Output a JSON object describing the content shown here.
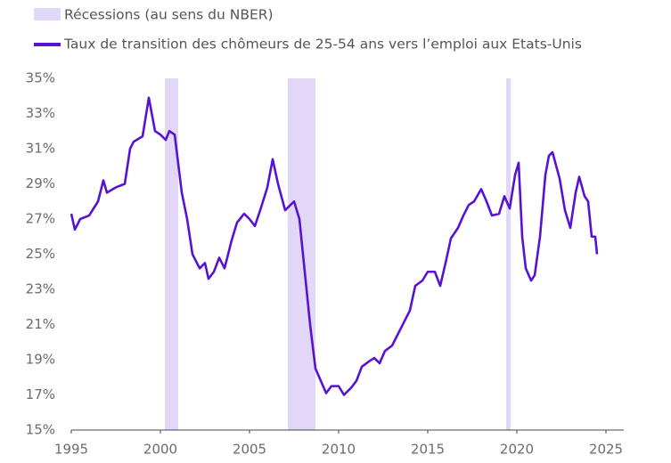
{
  "chart_data": {
    "type": "line",
    "recessions": {
      "name": "Récessions (au sens du NBER)",
      "color": "#e2d7f7",
      "spans": [
        [
          2000.25,
          2001.0
        ],
        [
          2007.15,
          2008.7
        ],
        [
          2019.4,
          2019.65
        ]
      ]
    },
    "series": [
      {
        "name": "Taux de transition des chômeurs de 25-54 ans vers l’emploi aux Etats-Unis",
        "color": "#5713d3",
        "x": [
          1995.0,
          1995.2,
          1995.5,
          1996.0,
          1996.5,
          1996.8,
          1997.0,
          1997.5,
          1998.0,
          1998.3,
          1998.5,
          1999.0,
          1999.35,
          1999.7,
          2000.0,
          2000.3,
          2000.5,
          2000.8,
          2001.2,
          2001.5,
          2001.8,
          2002.2,
          2002.5,
          2002.7,
          2003.0,
          2003.3,
          2003.6,
          2004.0,
          2004.3,
          2004.7,
          2005.0,
          2005.3,
          2005.6,
          2006.0,
          2006.3,
          2006.6,
          2007.0,
          2007.3,
          2007.5,
          2007.8,
          2008.1,
          2008.4,
          2008.7,
          2009.0,
          2009.3,
          2009.6,
          2010.0,
          2010.3,
          2010.7,
          2011.0,
          2011.3,
          2011.7,
          2012.0,
          2012.3,
          2012.6,
          2013.0,
          2013.5,
          2014.0,
          2014.3,
          2014.7,
          2015.0,
          2015.4,
          2015.7,
          2016.0,
          2016.3,
          2016.7,
          2017.0,
          2017.3,
          2017.6,
          2018.0,
          2018.3,
          2018.6,
          2019.0,
          2019.3,
          2019.6,
          2019.9,
          2020.1,
          2020.3,
          2020.5,
          2020.8,
          2021.0,
          2021.3,
          2021.6,
          2021.8,
          2022.0,
          2022.4,
          2022.7,
          2023.0,
          2023.3,
          2023.5,
          2023.8,
          2024.0,
          2024.2,
          2024.4,
          2024.5
        ],
        "values": [
          27.3,
          26.4,
          27.0,
          27.2,
          28.0,
          29.2,
          28.5,
          28.8,
          29.0,
          31.0,
          31.4,
          31.7,
          33.9,
          32.0,
          31.8,
          31.5,
          32.0,
          31.8,
          28.5,
          27.0,
          25.0,
          24.2,
          24.5,
          23.6,
          24.0,
          24.8,
          24.2,
          25.8,
          26.8,
          27.3,
          27.0,
          26.6,
          27.5,
          28.8,
          30.4,
          29.0,
          27.5,
          27.8,
          28.0,
          27.0,
          24.0,
          21.0,
          18.5,
          17.8,
          17.1,
          17.5,
          17.5,
          17.0,
          17.4,
          17.8,
          18.6,
          18.9,
          19.1,
          18.8,
          19.5,
          19.8,
          20.8,
          21.8,
          23.2,
          23.5,
          24.0,
          24.0,
          23.2,
          24.5,
          25.9,
          26.5,
          27.2,
          27.8,
          28.0,
          28.7,
          28.0,
          27.2,
          27.3,
          28.3,
          27.6,
          29.5,
          30.2,
          26.0,
          24.2,
          23.5,
          23.8,
          26.0,
          29.5,
          30.6,
          30.8,
          29.3,
          27.5,
          26.5,
          28.5,
          29.4,
          28.3,
          28.0,
          26.0,
          26.0,
          25.0
        ]
      }
    ],
    "xlim": [
      1995,
      2025
    ],
    "xticks": [
      1995,
      2000,
      2005,
      2010,
      2015,
      2020,
      2025
    ],
    "ylim": [
      15,
      35
    ],
    "yticks": [
      {
        "value": 15,
        "label": "15%"
      },
      {
        "value": 17,
        "label": "17%"
      },
      {
        "value": 19,
        "label": "19%"
      },
      {
        "value": 21,
        "label": "21%"
      },
      {
        "value": 23,
        "label": "23%"
      },
      {
        "value": 25,
        "label": "25%"
      },
      {
        "value": 27,
        "label": "27%"
      },
      {
        "value": 29,
        "label": "29%"
      },
      {
        "value": 31,
        "label": "31%"
      },
      {
        "value": 33,
        "label": "33%"
      },
      {
        "value": 35,
        "label": "35%"
      }
    ],
    "grid": false
  }
}
